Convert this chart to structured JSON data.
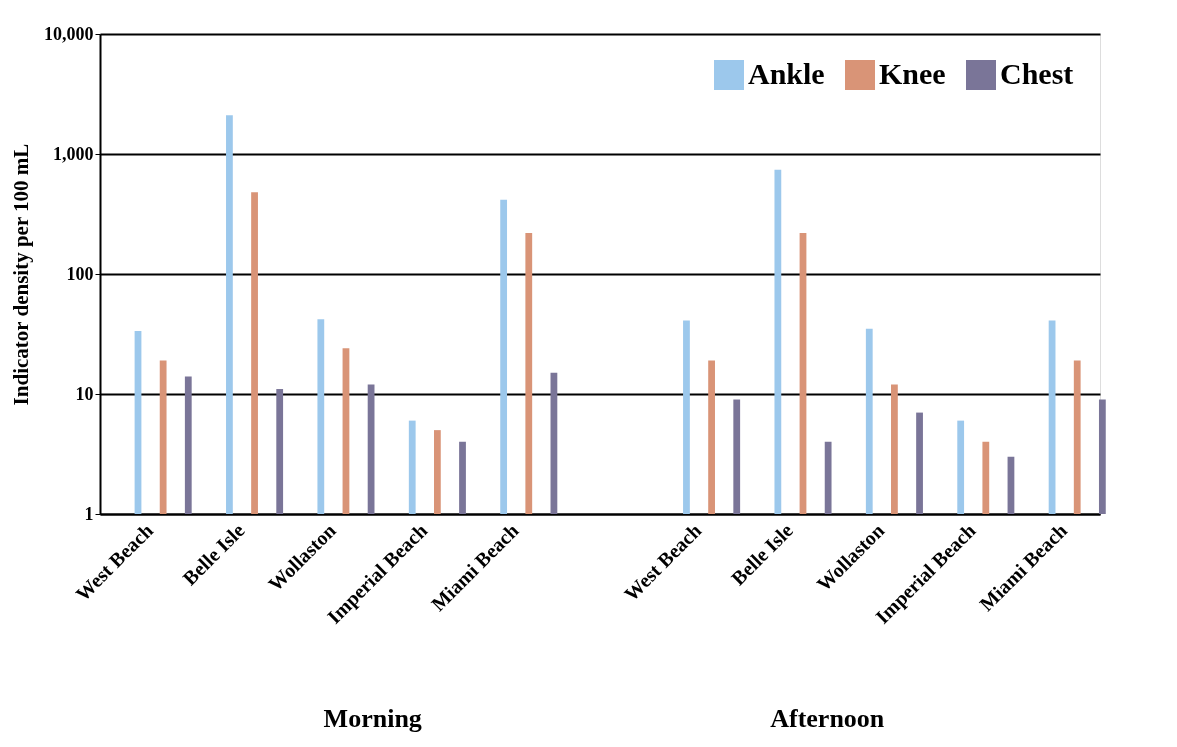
{
  "chart_data": {
    "type": "bar",
    "ylabel": "Indicator density per 100 mL",
    "categories": [
      "West Beach",
      "Belle Isle",
      "Wollaston",
      "Imperial Beach",
      "Miami Beach",
      null,
      "West Beach",
      "Belle Isle",
      "Wollaston",
      "Imperial Beach",
      "Miami Beach"
    ],
    "series": [
      {
        "name": "Ankle",
        "color": "#9cc8ec",
        "values": [
          33.5,
          2100,
          42,
          6,
          415,
          null,
          41,
          740,
          35,
          6,
          41
        ]
      },
      {
        "name": "Knee",
        "color": "#d99477",
        "values": [
          19,
          480,
          24,
          5,
          220,
          null,
          19,
          220,
          12,
          4,
          19
        ]
      },
      {
        "name": "Chest",
        "color": "#7a7598",
        "values": [
          14,
          11,
          12,
          4,
          15,
          null,
          9,
          4,
          7,
          3,
          9
        ]
      }
    ],
    "log": "y",
    "ylim": [
      1,
      10000
    ],
    "yticks": [
      1,
      10,
      100,
      {
        "value": 1000,
        "label": "1,000"
      },
      {
        "value": 10000,
        "label": "10,000"
      }
    ],
    "grid": "y",
    "legend": "top right",
    "annotations": [
      "Morning",
      "Afternoon"
    ]
  }
}
